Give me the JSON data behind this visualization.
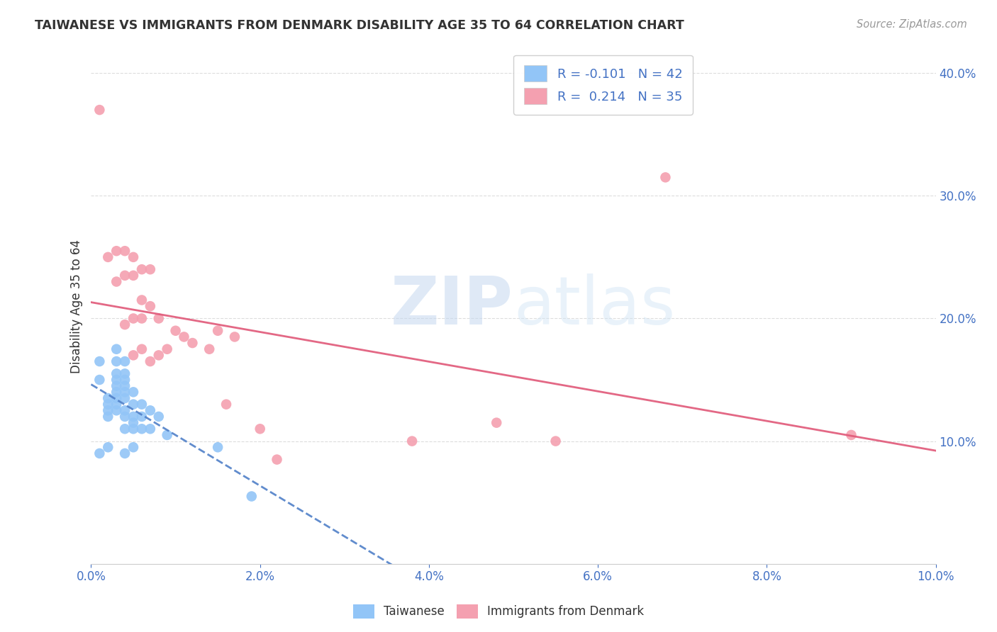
{
  "title": "TAIWANESE VS IMMIGRANTS FROM DENMARK DISABILITY AGE 35 TO 64 CORRELATION CHART",
  "source": "Source: ZipAtlas.com",
  "ylabel": "Disability Age 35 to 64",
  "xlim": [
    0.0,
    0.1
  ],
  "ylim": [
    0.0,
    0.42
  ],
  "xticks": [
    0.0,
    0.02,
    0.04,
    0.06,
    0.08,
    0.1
  ],
  "yticks": [
    0.1,
    0.2,
    0.3,
    0.4
  ],
  "legend1_r": "-0.101",
  "legend1_n": "42",
  "legend2_r": "0.214",
  "legend2_n": "35",
  "blue_color": "#92C5F7",
  "pink_color": "#F4A0B0",
  "blue_line_color": "#5080C8",
  "pink_line_color": "#E05878",
  "taiwanese_x": [
    0.001,
    0.001,
    0.001,
    0.002,
    0.002,
    0.002,
    0.002,
    0.002,
    0.003,
    0.003,
    0.003,
    0.003,
    0.003,
    0.003,
    0.003,
    0.003,
    0.003,
    0.004,
    0.004,
    0.004,
    0.004,
    0.004,
    0.004,
    0.004,
    0.004,
    0.004,
    0.004,
    0.005,
    0.005,
    0.005,
    0.005,
    0.005,
    0.005,
    0.006,
    0.006,
    0.006,
    0.007,
    0.007,
    0.008,
    0.009,
    0.015,
    0.019
  ],
  "taiwanese_y": [
    0.165,
    0.15,
    0.09,
    0.135,
    0.13,
    0.125,
    0.12,
    0.095,
    0.175,
    0.165,
    0.155,
    0.15,
    0.145,
    0.14,
    0.135,
    0.13,
    0.125,
    0.165,
    0.155,
    0.15,
    0.145,
    0.14,
    0.135,
    0.125,
    0.12,
    0.11,
    0.09,
    0.14,
    0.13,
    0.12,
    0.115,
    0.11,
    0.095,
    0.13,
    0.12,
    0.11,
    0.125,
    0.11,
    0.12,
    0.105,
    0.095,
    0.055
  ],
  "denmark_x": [
    0.001,
    0.002,
    0.003,
    0.003,
    0.004,
    0.004,
    0.004,
    0.005,
    0.005,
    0.005,
    0.005,
    0.006,
    0.006,
    0.006,
    0.006,
    0.007,
    0.007,
    0.007,
    0.008,
    0.008,
    0.009,
    0.01,
    0.011,
    0.012,
    0.014,
    0.015,
    0.016,
    0.017,
    0.02,
    0.022,
    0.038,
    0.048,
    0.055,
    0.068,
    0.09
  ],
  "denmark_y": [
    0.37,
    0.25,
    0.255,
    0.23,
    0.255,
    0.235,
    0.195,
    0.25,
    0.235,
    0.2,
    0.17,
    0.24,
    0.215,
    0.2,
    0.175,
    0.24,
    0.21,
    0.165,
    0.2,
    0.17,
    0.175,
    0.19,
    0.185,
    0.18,
    0.175,
    0.19,
    0.13,
    0.185,
    0.11,
    0.085,
    0.1,
    0.115,
    0.1,
    0.315,
    0.105
  ],
  "watermark_zip": "ZIP",
  "watermark_atlas": "atlas",
  "background_color": "#ffffff",
  "grid_color": "#dddddd",
  "tick_color": "#4472C4",
  "title_color": "#333333",
  "source_color": "#999999"
}
